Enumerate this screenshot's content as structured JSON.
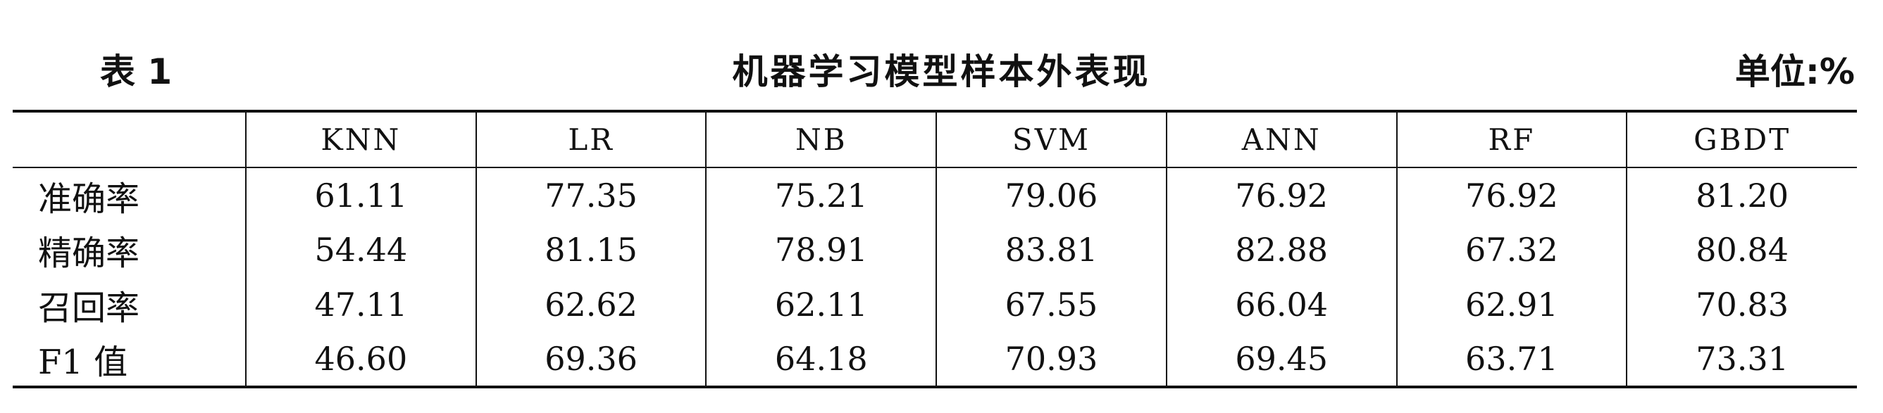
{
  "caption": {
    "number": "表 1",
    "title": "机器学习模型样本外表现",
    "unit": "单位:%"
  },
  "table": {
    "headers": [
      "",
      "KNN",
      "LR",
      "NB",
      "SVM",
      "ANN",
      "RF",
      "GBDT"
    ],
    "rows": [
      [
        "准确率",
        "61.11",
        "77.35",
        "75.21",
        "79.06",
        "76.92",
        "76.92",
        "81.20"
      ],
      [
        "精确率",
        "54.44",
        "81.15",
        "78.91",
        "83.81",
        "82.88",
        "67.32",
        "80.84"
      ],
      [
        "召回率",
        "47.11",
        "62.62",
        "62.11",
        "67.55",
        "66.04",
        "62.91",
        "70.83"
      ],
      [
        "F1 值",
        "46.60",
        "69.36",
        "64.18",
        "70.93",
        "69.45",
        "63.71",
        "73.31"
      ]
    ]
  }
}
